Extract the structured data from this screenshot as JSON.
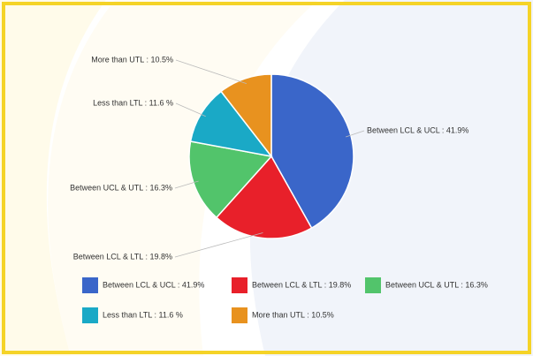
{
  "chart_data": {
    "type": "pie",
    "categories": [
      "Between LCL & UCL : 41.9%",
      "Between LCL & LTL : 19.8%",
      "Between UCL & UTL : 16.3%",
      "Less than LTL : 11.6 %",
      "More than UTL : 10.5%"
    ],
    "values": [
      41.9,
      19.8,
      16.3,
      11.6,
      10.5
    ],
    "colors": [
      "#3a66c9",
      "#e8202a",
      "#52c46b",
      "#1aa9c6",
      "#e8921f"
    ],
    "legend": "bottom"
  }
}
